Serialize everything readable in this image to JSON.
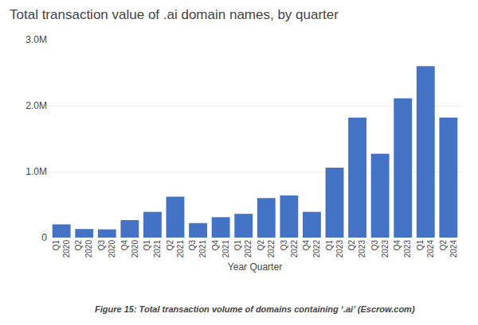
{
  "chart_data": {
    "type": "bar",
    "title": "Total transaction value of .ai domain names, by quarter",
    "xlabel": "Year Quarter",
    "caption": "Figure 15: Total transaction volume of domains containing ‘.ai’ (Escrow.com)",
    "categories": [
      "Q1 2020",
      "Q2 2020",
      "Q3 2020",
      "Q4 2020",
      "Q1 2021",
      "Q2 2021",
      "Q3 2021",
      "Q4 2021",
      "Q1 2022",
      "Q2 2022",
      "Q3 2022",
      "Q4 2022",
      "Q1 2023",
      "Q2 2023",
      "Q3 2023",
      "Q4 2023",
      "Q1 2024",
      "Q2 2024"
    ],
    "values": [
      200000,
      130000,
      125000,
      265000,
      390000,
      620000,
      220000,
      310000,
      360000,
      600000,
      640000,
      390000,
      1060000,
      1820000,
      1270000,
      2110000,
      2600000,
      1820000
    ],
    "color": "#4472C4",
    "ylim": [
      0,
      3000000
    ],
    "yticks": [
      0,
      {
        "value": 1000000,
        "label": "1.0M"
      },
      {
        "value": 2000000,
        "label": "2.0M"
      },
      {
        "value": 3000000,
        "label": "3.0M"
      }
    ],
    "grid": true
  }
}
